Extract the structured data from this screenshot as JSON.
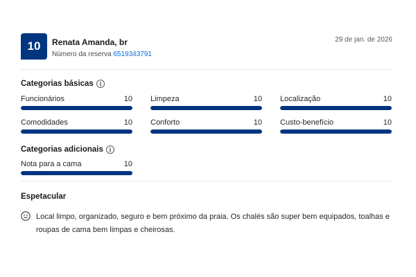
{
  "header": {
    "score": "10",
    "reviewer_name": "Renata Amanda, br",
    "booking_label": "Número da reserva",
    "booking_number": "6519343791",
    "date": "29 de jan. de 2026"
  },
  "basic": {
    "title": "Categorias básicas",
    "info_icon": "info-icon",
    "items": [
      {
        "label": "Funcionários",
        "score": "10",
        "fraction": 1.0
      },
      {
        "label": "Limpeza",
        "score": "10",
        "fraction": 1.0
      },
      {
        "label": "Localização",
        "score": "10",
        "fraction": 1.0
      },
      {
        "label": "Comodidades",
        "score": "10",
        "fraction": 1.0
      },
      {
        "label": "Conforto",
        "score": "10",
        "fraction": 1.0
      },
      {
        "label": "Custo-benefício",
        "score": "10",
        "fraction": 1.0
      }
    ]
  },
  "additional": {
    "title": "Categorias adicionais",
    "info_icon": "info-icon",
    "items": [
      {
        "label": "Nota para a cama",
        "score": "10",
        "fraction": 1.0
      }
    ]
  },
  "review": {
    "title": "Espetacular",
    "icon": "smile-icon",
    "text": "Local limpo, organizado, seguro e bem próximo da praia. Os chalés são super bem equipados, toalhas e roupas de cama bem limpas e cheirosas."
  },
  "colors": {
    "accent": "#003580",
    "link": "#006ce4",
    "track": "#e7e7e7"
  }
}
